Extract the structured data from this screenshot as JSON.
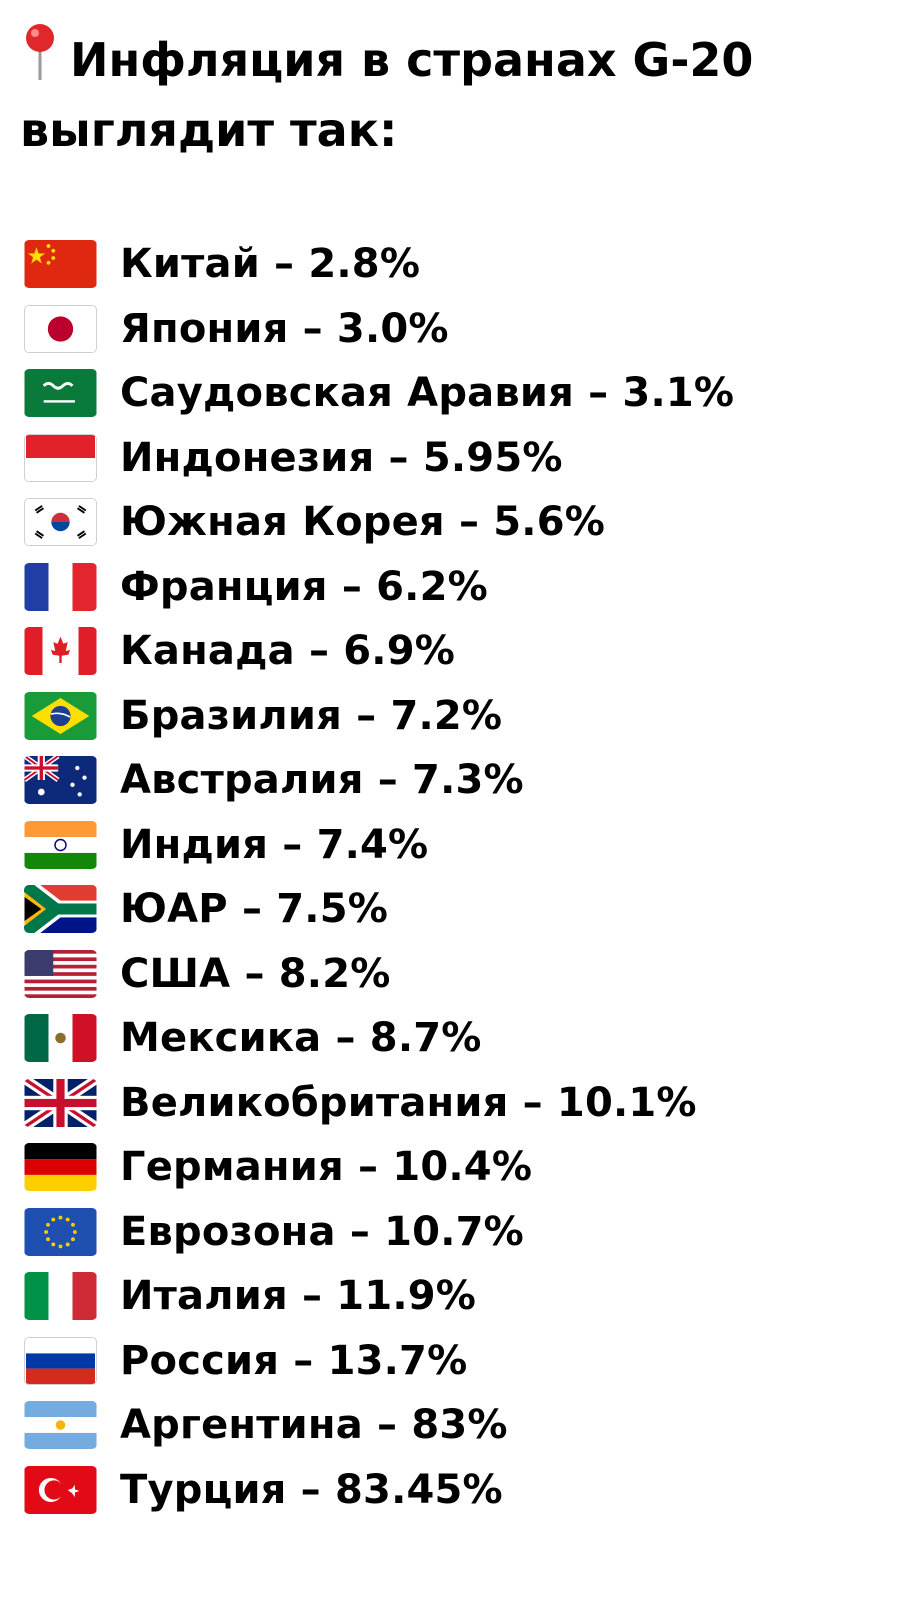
{
  "title": "Инфляция в странах G-20 выглядит так:",
  "title_icon": "round-pushpin-icon",
  "items": [
    {
      "flag": "china-flag-icon",
      "text": "Китай – 2.8%"
    },
    {
      "flag": "japan-flag-icon",
      "text": "Япония – 3.0%"
    },
    {
      "flag": "saudi-arabia-flag-icon",
      "text": "Саудовская Аравия – 3.1%"
    },
    {
      "flag": "indonesia-flag-icon",
      "text": "Индонезия – 5.95%"
    },
    {
      "flag": "south-korea-flag-icon",
      "text": "Южная Корея – 5.6%"
    },
    {
      "flag": "france-flag-icon",
      "text": "Франция – 6.2%"
    },
    {
      "flag": "canada-flag-icon",
      "text": "Канада – 6.9%"
    },
    {
      "flag": "brazil-flag-icon",
      "text": "Бразилия – 7.2%"
    },
    {
      "flag": "australia-flag-icon",
      "text": "Австралия – 7.3%"
    },
    {
      "flag": "india-flag-icon",
      "text": "Индия – 7.4%"
    },
    {
      "flag": "south-africa-flag-icon",
      "text": "ЮАР – 7.5%"
    },
    {
      "flag": "usa-flag-icon",
      "text": "США – 8.2%"
    },
    {
      "flag": "mexico-flag-icon",
      "text": "Мексика – 8.7%"
    },
    {
      "flag": "uk-flag-icon",
      "text": "Великобритания – 10.1%"
    },
    {
      "flag": "germany-flag-icon",
      "text": "Германия – 10.4%"
    },
    {
      "flag": "eu-flag-icon",
      "text": "Еврозона – 10.7%"
    },
    {
      "flag": "italy-flag-icon",
      "text": "Италия – 11.9%"
    },
    {
      "flag": "russia-flag-icon",
      "text": "Россия – 13.7%"
    },
    {
      "flag": "argentina-flag-icon",
      "text": "Аргентина – 83%"
    },
    {
      "flag": "turkey-flag-icon",
      "text": "Турция – 83.45%"
    }
  ]
}
